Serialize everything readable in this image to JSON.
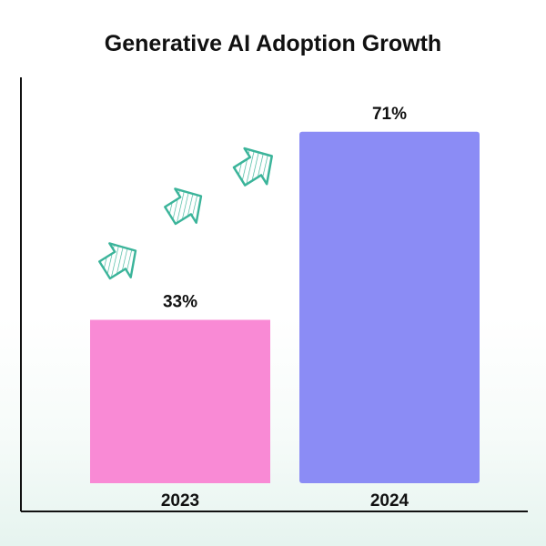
{
  "chart_data": {
    "type": "bar",
    "title": "Generative AI Adoption Growth",
    "categories": [
      "2023",
      "2024"
    ],
    "values": [
      33,
      71
    ],
    "value_labels": [
      "33%",
      "71%"
    ],
    "xlabel": "",
    "ylabel": "",
    "ylim": [
      0,
      80
    ],
    "grid": false,
    "legend": "none",
    "colors": [
      "#f98ad5",
      "#8b8cf5"
    ],
    "annotation_icon": "sketch-arrow-icon",
    "annotation_color": "#3bb49a"
  }
}
